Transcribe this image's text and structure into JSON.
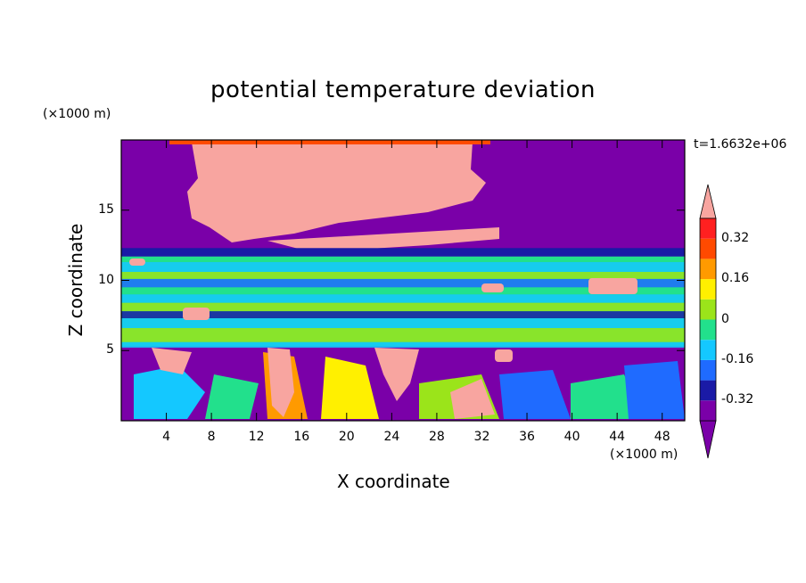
{
  "chart_data": {
    "type": "heatmap",
    "title": "potential temperature deviation",
    "xlabel": "X coordinate",
    "ylabel": "Z coordinate",
    "x_unit": "(×1000 m)",
    "y_unit": "(×1000 m)",
    "time_label": "t=1.6632e+06",
    "xlim": [
      0,
      50
    ],
    "ylim": [
      0,
      20
    ],
    "x_ticks": [
      4,
      8,
      12,
      16,
      20,
      24,
      28,
      32,
      36,
      40,
      44,
      48
    ],
    "y_ticks": [
      5,
      10,
      15
    ],
    "colorbar": {
      "levels": [
        -0.4,
        -0.32,
        -0.24,
        -0.16,
        -0.08,
        0,
        0.08,
        0.16,
        0.24,
        0.32,
        0.4
      ],
      "tick_labels": [
        "0.32",
        "0.16",
        "0",
        "-0.16",
        "-0.32"
      ],
      "tick_values": [
        0.32,
        0.16,
        0,
        -0.16,
        -0.32
      ],
      "colors": [
        "#7a00a8",
        "#1a1aa6",
        "#1f6bff",
        "#14c8ff",
        "#22e08c",
        "#9be41a",
        "#fff000",
        "#ff9a00",
        "#ff4a00",
        "#ff2020"
      ],
      "over_color": "#f8a5a0",
      "under_color": "#7a00a8"
    },
    "regions": {
      "upper_background": "#7a00a8",
      "upper_plume": "#f8a5a0",
      "mid_band": "#22e08c",
      "lower_background": "#7a00a8"
    }
  }
}
